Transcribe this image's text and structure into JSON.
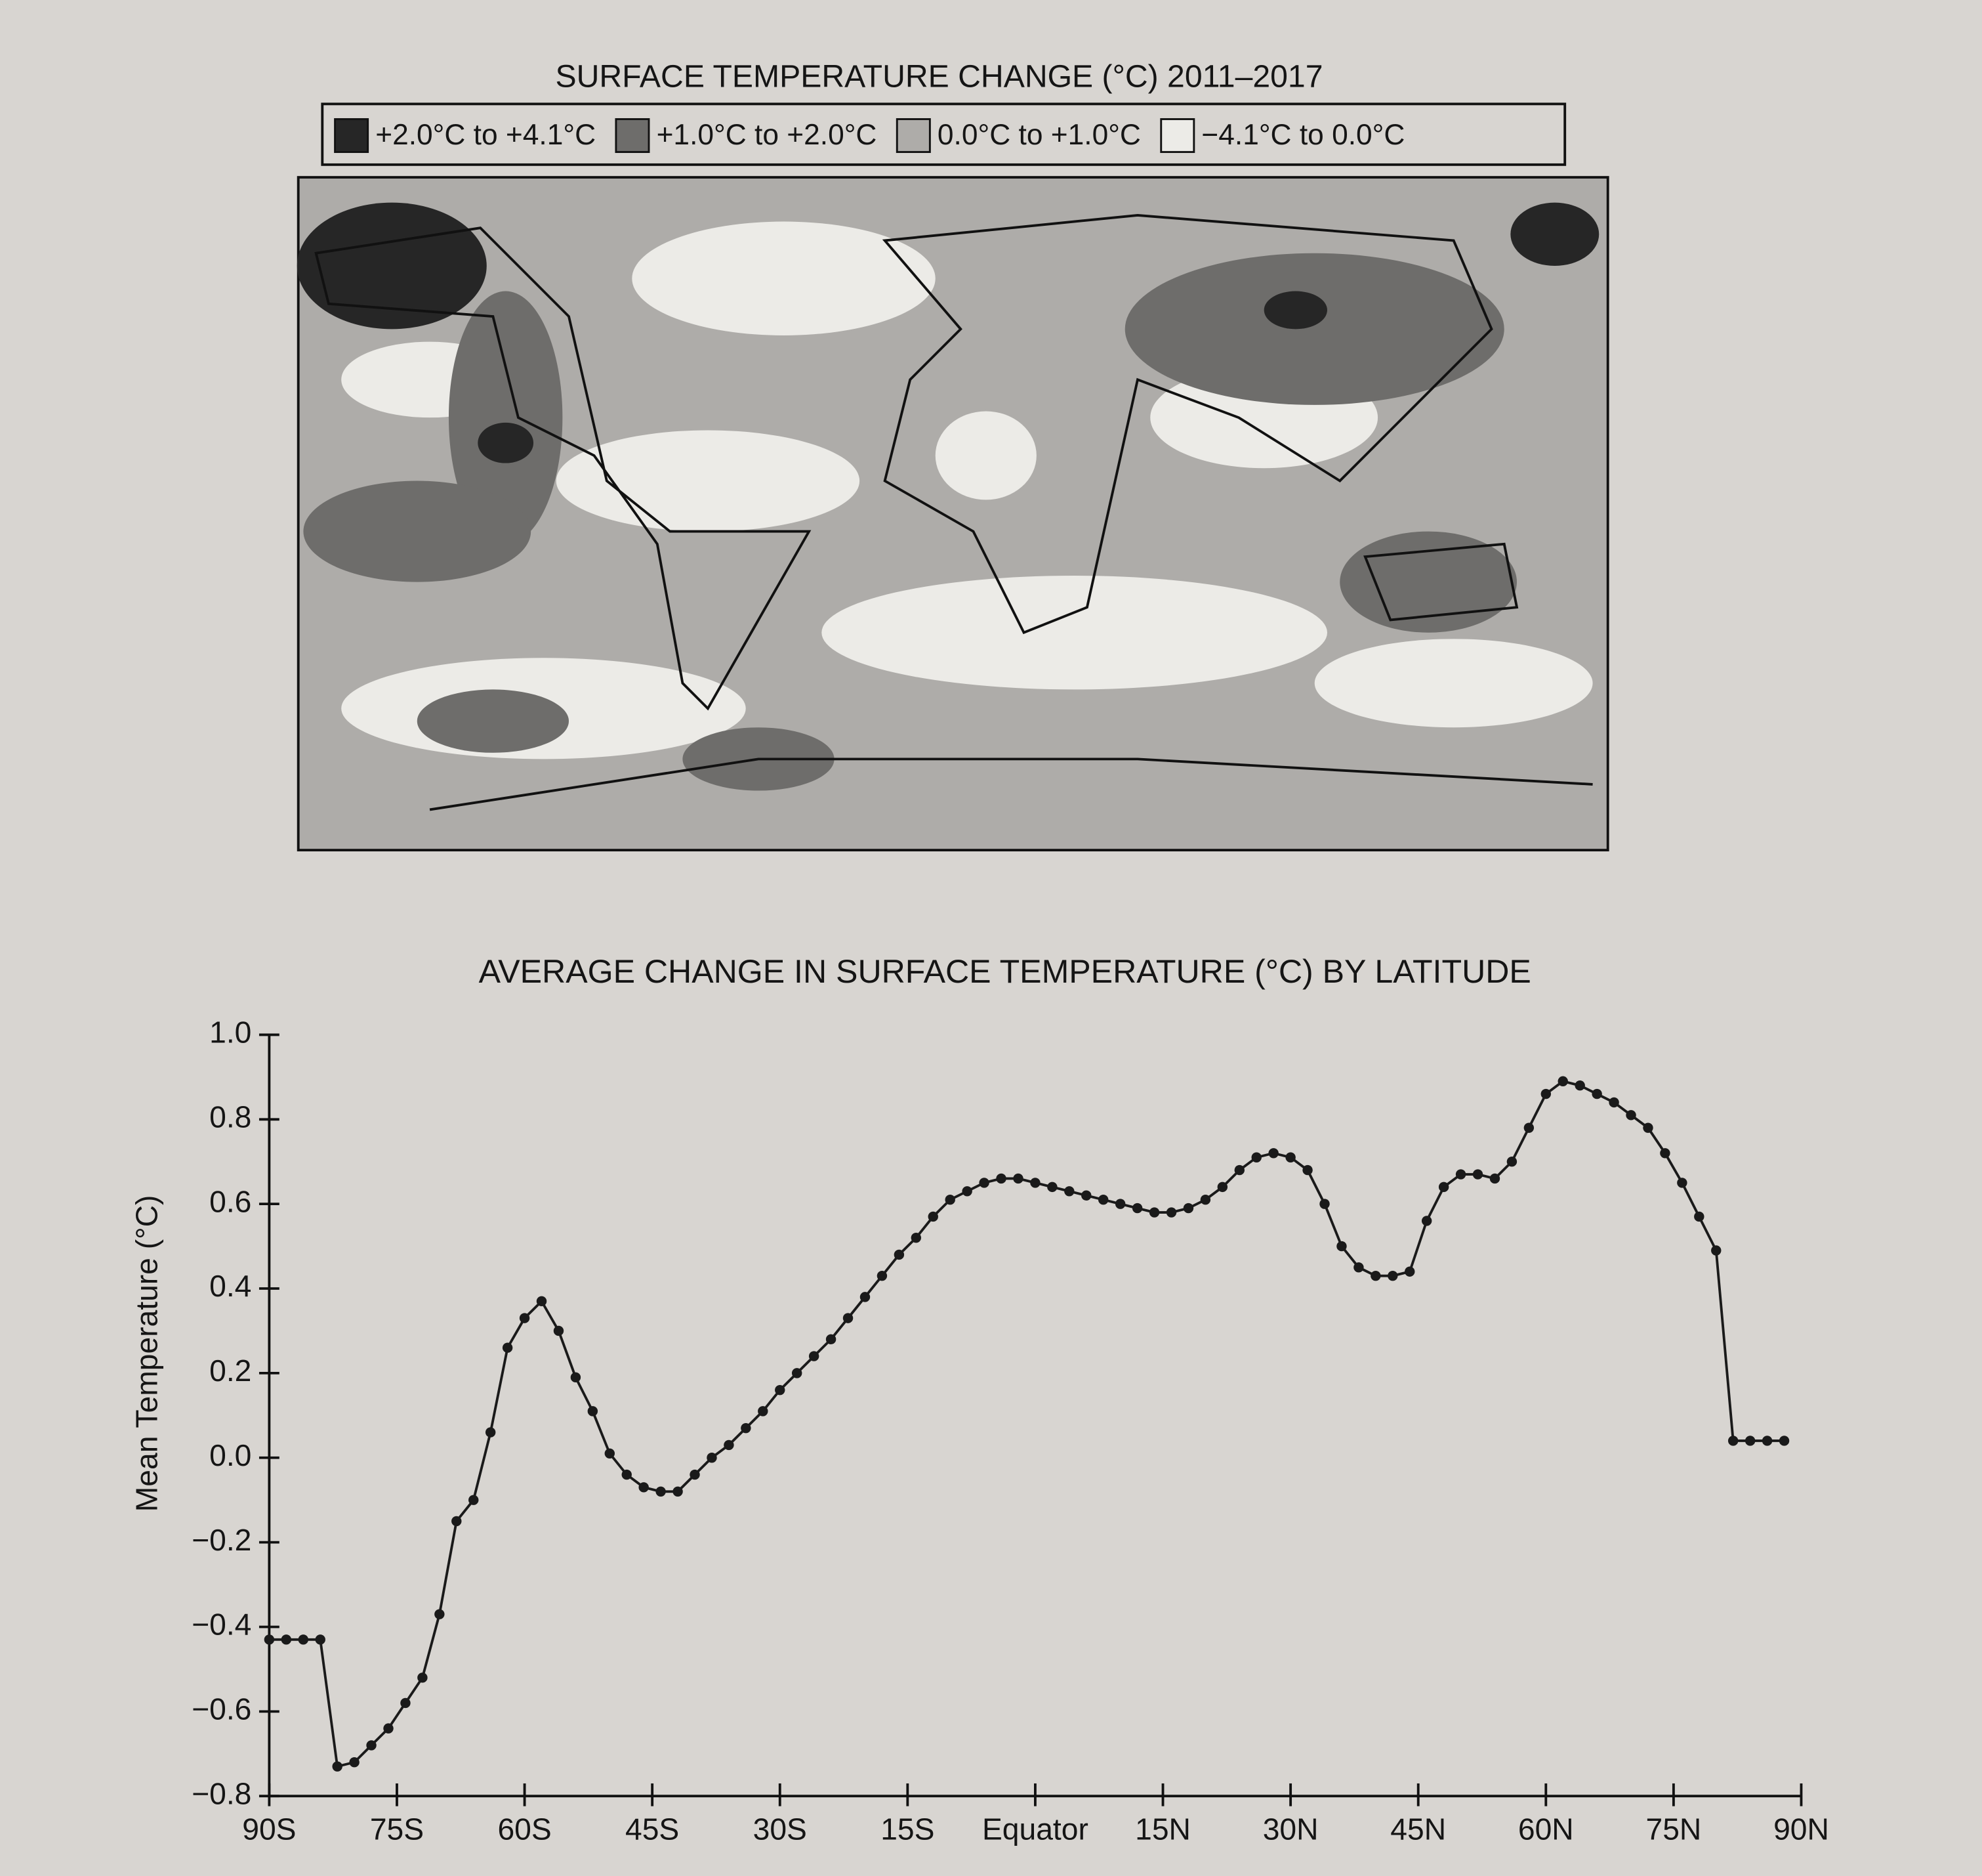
{
  "map": {
    "title": "SURFACE TEMPERATURE CHANGE (°C) 2011–2017",
    "legend": [
      {
        "label": "+2.0°C to +4.1°C",
        "color": "#262626"
      },
      {
        "label": "+1.0°C to +2.0°C",
        "color": "#6e6d6b"
      },
      {
        "label": "0.0°C to +1.0°C",
        "color": "#aeaca9"
      },
      {
        "label": "−4.1°C to 0.0°C",
        "color": "#ecebe7"
      }
    ]
  },
  "chart_data": {
    "type": "line",
    "title": "AVERAGE CHANGE IN SURFACE TEMPERATURE (°C) BY LATITUDE",
    "y_label": "Mean Temperature (°C)",
    "color": "#1a1a1a",
    "x": [
      -90,
      -88,
      -86,
      -84,
      -82,
      -80,
      -78,
      -76,
      -74,
      -72,
      -70,
      -68,
      -66,
      -64,
      -62,
      -60,
      -58,
      -56,
      -54,
      -52,
      -50,
      -48,
      -46,
      -44,
      -42,
      -40,
      -38,
      -36,
      -34,
      -32,
      -30,
      -28,
      -26,
      -24,
      -22,
      -20,
      -18,
      -16,
      -14,
      -12,
      -10,
      -8,
      -6,
      -4,
      -2,
      0,
      2,
      4,
      6,
      8,
      10,
      12,
      14,
      16,
      18,
      20,
      22,
      24,
      26,
      28,
      30,
      32,
      34,
      36,
      38,
      40,
      42,
      44,
      46,
      48,
      50,
      52,
      54,
      56,
      58,
      60,
      62,
      64,
      66,
      68,
      70,
      72,
      74,
      76,
      78,
      80,
      82,
      84,
      86,
      88
    ],
    "values": [
      -0.43,
      -0.43,
      -0.43,
      -0.43,
      -0.73,
      -0.72,
      -0.68,
      -0.64,
      -0.58,
      -0.52,
      -0.37,
      -0.15,
      -0.1,
      0.06,
      0.26,
      0.33,
      0.37,
      0.3,
      0.19,
      0.11,
      0.01,
      -0.04,
      -0.07,
      -0.08,
      -0.08,
      -0.04,
      0.0,
      0.03,
      0.07,
      0.11,
      0.16,
      0.2,
      0.24,
      0.28,
      0.33,
      0.38,
      0.43,
      0.48,
      0.52,
      0.57,
      0.61,
      0.63,
      0.65,
      0.66,
      0.66,
      0.65,
      0.64,
      0.63,
      0.62,
      0.61,
      0.6,
      0.59,
      0.58,
      0.58,
      0.59,
      0.61,
      0.64,
      0.68,
      0.71,
      0.72,
      0.71,
      0.68,
      0.6,
      0.5,
      0.45,
      0.43,
      0.43,
      0.44,
      0.56,
      0.64,
      0.67,
      0.67,
      0.66,
      0.7,
      0.78,
      0.86,
      0.89,
      0.88,
      0.86,
      0.84,
      0.81,
      0.78,
      0.72,
      0.65,
      0.57,
      0.49,
      0.04,
      0.04,
      0.04,
      0.04
    ],
    "xlim": [
      -90,
      90
    ],
    "xticks": [
      {
        "value": -90,
        "label": "90S"
      },
      {
        "value": -75,
        "label": "75S"
      },
      {
        "value": -60,
        "label": "60S"
      },
      {
        "value": -45,
        "label": "45S"
      },
      {
        "value": -30,
        "label": "30S"
      },
      {
        "value": -15,
        "label": "15S"
      },
      {
        "value": 0,
        "label": "Equator"
      },
      {
        "value": 15,
        "label": "15N"
      },
      {
        "value": 30,
        "label": "30N"
      },
      {
        "value": 45,
        "label": "45N"
      },
      {
        "value": 60,
        "label": "60N"
      },
      {
        "value": 75,
        "label": "75N"
      },
      {
        "value": 90,
        "label": "90N"
      }
    ],
    "ylim": [
      -0.8,
      1.0
    ],
    "yticks": [
      {
        "value": 1.0,
        "label": "1.0"
      },
      0.8,
      0.6,
      0.4,
      0.2,
      {
        "value": 0,
        "label": "0.0"
      },
      {
        "value": -0.2,
        "label": "−0.2"
      },
      {
        "value": -0.4,
        "label": "−0.4"
      },
      {
        "value": -0.6,
        "label": "−0.6"
      },
      {
        "value": -0.8,
        "label": "−0.8"
      }
    ]
  }
}
